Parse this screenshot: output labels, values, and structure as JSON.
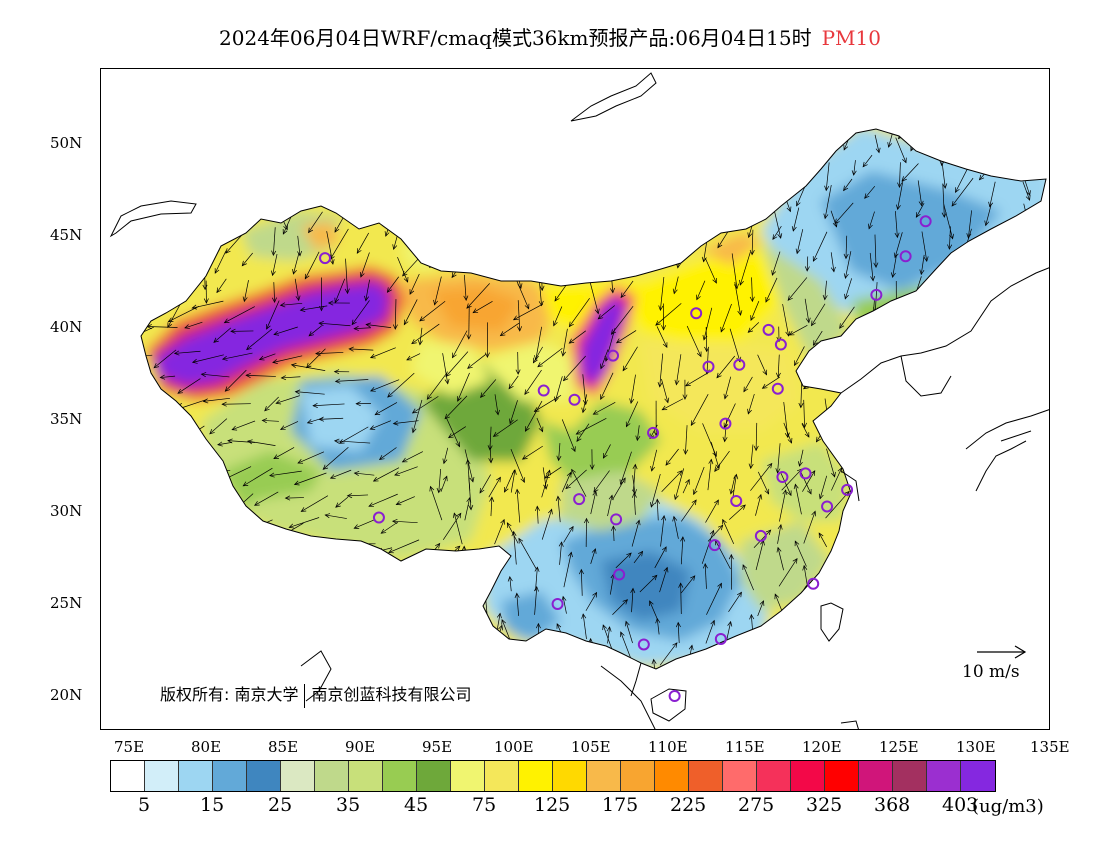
{
  "title": {
    "main": "2024年06月04日WRF/cmaq模式36km预报产品:06月04日15时",
    "pollutant": "PM10",
    "pollutant_color": "#e8383d"
  },
  "axes": {
    "lat_labels": [
      "50N",
      "45N",
      "40N",
      "35N",
      "30N",
      "25N",
      "20N"
    ],
    "lon_labels": [
      "75E",
      "80E",
      "85E",
      "90E",
      "95E",
      "100E",
      "105E",
      "110E",
      "115E",
      "120E",
      "125E",
      "130E",
      "135E"
    ]
  },
  "copyright": {
    "left": "版权所有: 南京大学",
    "right": "南京创蓝科技有限公司"
  },
  "wind_reference": {
    "label": "10 m/s"
  },
  "colorbar": {
    "colors": [
      "#ffffff",
      "#d2eef9",
      "#9dd6f2",
      "#62a9d8",
      "#3f86bf",
      "#dbe8c2",
      "#bfd98b",
      "#c8e07a",
      "#98cc52",
      "#6ea83a",
      "#f0f570",
      "#f4e75a",
      "#fff200",
      "#ffd900",
      "#f8b94a",
      "#f8a530",
      "#ff8a00",
      "#ef5f2a",
      "#ff6b6b",
      "#f5315a",
      "#f30848",
      "#ff0000",
      "#d0157a",
      "#a33060",
      "#9b2fd0",
      "#8528e0"
    ],
    "tick_labels": [
      "5",
      "15",
      "25",
      "35",
      "45",
      "75",
      "125",
      "175",
      "225",
      "275",
      "325",
      "368",
      "403"
    ],
    "unit": "(ug/m3)"
  },
  "stations": [
    {
      "lon": 87.6,
      "lat": 43.8
    },
    {
      "lon": 91.1,
      "lat": 29.7
    },
    {
      "lon": 101.8,
      "lat": 36.6
    },
    {
      "lon": 103.8,
      "lat": 36.1
    },
    {
      "lon": 106.3,
      "lat": 38.5
    },
    {
      "lon": 111.7,
      "lat": 40.8
    },
    {
      "lon": 112.5,
      "lat": 37.9
    },
    {
      "lon": 114.5,
      "lat": 38.0
    },
    {
      "lon": 116.4,
      "lat": 39.9
    },
    {
      "lon": 117.2,
      "lat": 39.1
    },
    {
      "lon": 117.0,
      "lat": 36.7
    },
    {
      "lon": 113.6,
      "lat": 34.8
    },
    {
      "lon": 108.9,
      "lat": 34.3
    },
    {
      "lon": 104.1,
      "lat": 30.7
    },
    {
      "lon": 106.5,
      "lat": 29.6
    },
    {
      "lon": 106.7,
      "lat": 26.6
    },
    {
      "lon": 102.7,
      "lat": 25.0
    },
    {
      "lon": 108.3,
      "lat": 22.8
    },
    {
      "lon": 113.3,
      "lat": 23.1
    },
    {
      "lon": 110.3,
      "lat": 20.0
    },
    {
      "lon": 112.9,
      "lat": 28.2
    },
    {
      "lon": 115.9,
      "lat": 28.7
    },
    {
      "lon": 114.3,
      "lat": 30.6
    },
    {
      "lon": 117.3,
      "lat": 31.9
    },
    {
      "lon": 118.8,
      "lat": 32.1
    },
    {
      "lon": 120.2,
      "lat": 30.3
    },
    {
      "lon": 121.5,
      "lat": 31.2
    },
    {
      "lon": 119.3,
      "lat": 26.1
    },
    {
      "lon": 123.4,
      "lat": 41.8
    },
    {
      "lon": 125.3,
      "lat": 43.9
    },
    {
      "lon": 126.6,
      "lat": 45.8
    }
  ]
}
